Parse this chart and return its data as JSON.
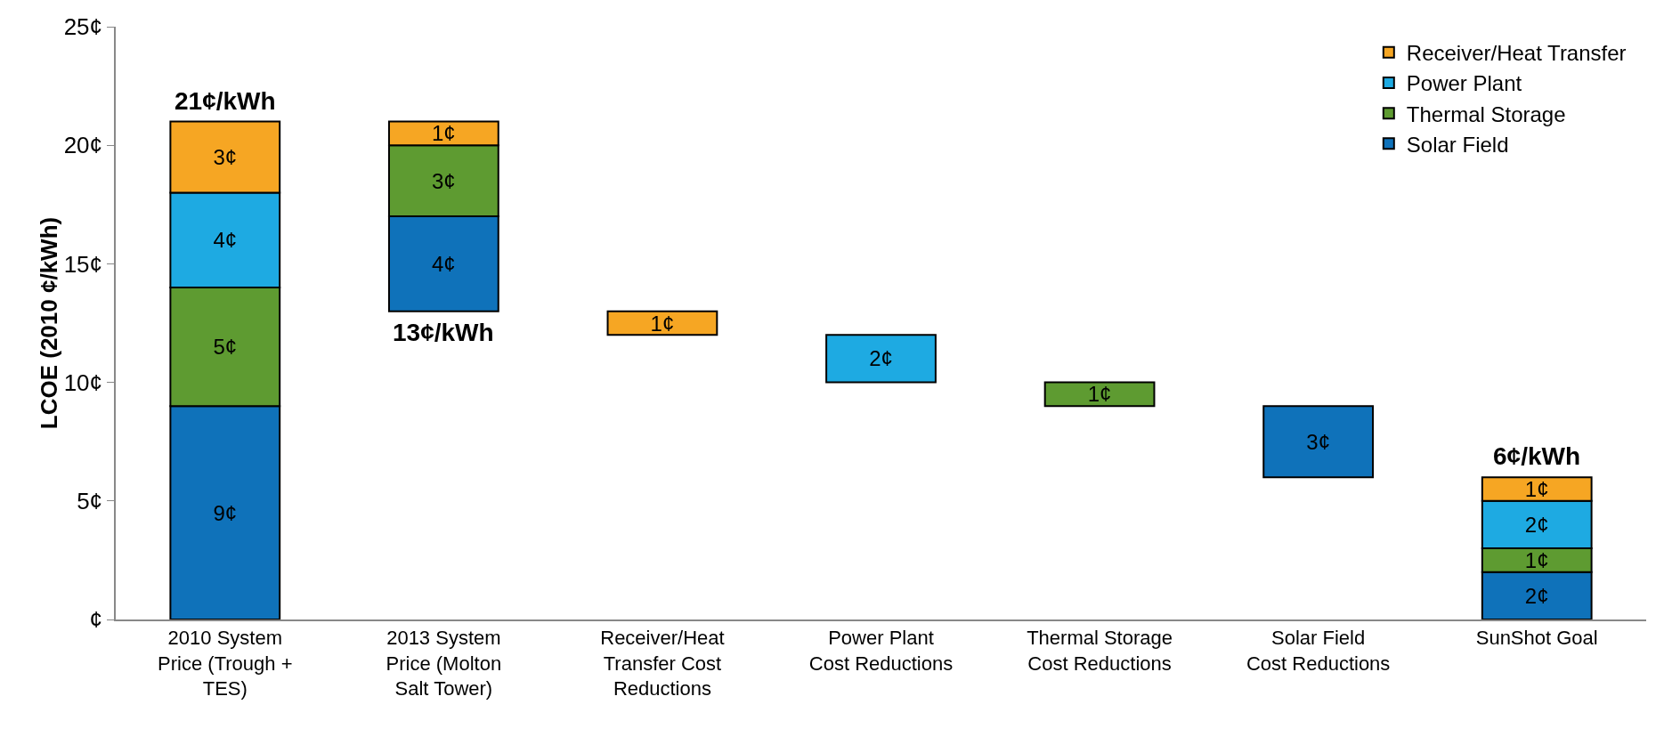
{
  "chart_data": {
    "type": "bar",
    "ylabel": "LCOE (2010 ¢/kWh)",
    "categories": [
      "2010 System Price (Trough + TES)",
      "2013 System Price (Molton Salt Tower)",
      "Receiver/Heat Transfer Cost Reductions",
      "Power Plant Cost Reductions",
      "Thermal Storage Cost Reductions",
      "Solar Field Cost Reductions",
      "SunShot Goal"
    ],
    "series": [
      {
        "name": "Solar Field",
        "color": "#0f72ba",
        "base": [
          0,
          13,
          null,
          null,
          null,
          6,
          0
        ],
        "values": [
          9,
          4,
          null,
          null,
          null,
          3,
          2
        ],
        "value_labels": [
          "9¢",
          "4¢",
          null,
          null,
          null,
          "3¢",
          "2¢"
        ]
      },
      {
        "name": "Thermal Storage",
        "color": "#5e9b31",
        "base": [
          9,
          17,
          null,
          null,
          9,
          null,
          2
        ],
        "values": [
          5,
          3,
          null,
          null,
          1,
          null,
          1
        ],
        "value_labels": [
          "5¢",
          "3¢",
          null,
          null,
          "1¢",
          null,
          "1¢"
        ]
      },
      {
        "name": "Power Plant",
        "color": "#1eaae2",
        "base": [
          14,
          null,
          null,
          10,
          null,
          null,
          3
        ],
        "values": [
          4,
          null,
          null,
          2,
          null,
          null,
          2
        ],
        "value_labels": [
          "4¢",
          null,
          null,
          "2¢",
          null,
          null,
          "2¢"
        ]
      },
      {
        "name": "Receiver/Heat Transfer",
        "color": "#f6a623",
        "base": [
          18,
          20,
          12,
          null,
          null,
          null,
          5
        ],
        "values": [
          3,
          1,
          1,
          null,
          null,
          null,
          1
        ],
        "value_labels": [
          "3¢",
          "1¢",
          "1¢",
          null,
          null,
          null,
          "1¢"
        ]
      }
    ],
    "ylim": [
      0,
      25
    ],
    "yticks": [
      {
        "value": 0,
        "label": "¢"
      },
      {
        "value": 5,
        "label": "5¢"
      },
      {
        "value": 10,
        "label": "10¢"
      },
      {
        "value": 15,
        "label": "15¢"
      },
      {
        "value": 20,
        "label": "20¢"
      },
      {
        "value": 25,
        "label": "25¢"
      }
    ],
    "annotations": [
      {
        "text": "21¢/kWh",
        "x": "2010 System Price (Trough + TES)",
        "y": 21
      },
      {
        "text": "13¢/kWh",
        "x": "2013 System Price (Molton Salt Tower)",
        "y": 13
      },
      {
        "text": "6¢/kWh",
        "x": "SunShot Goal",
        "y": 6
      }
    ],
    "grid": false,
    "legend": "top right"
  }
}
